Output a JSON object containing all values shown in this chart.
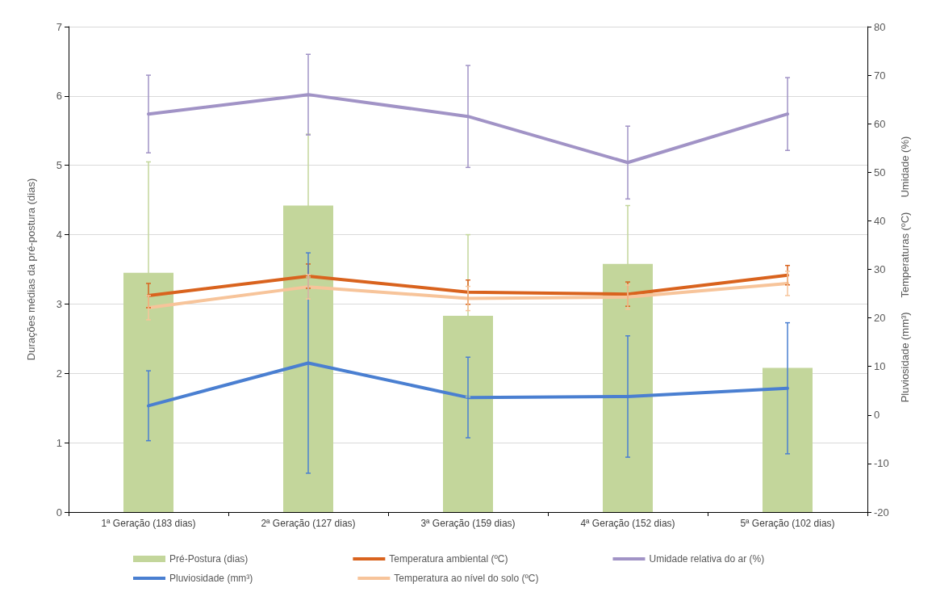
{
  "chart_data": {
    "type": "bar",
    "categories": [
      "1ª Geração (183 dias)",
      "2ª Geração (127 dias)",
      "3ª Geração (159 dias)",
      "4ª Geração (152 dias)",
      "5ª Geração (102 dias)"
    ],
    "ylabel": "Durações médias da pré-postura (dias)",
    "y2label": "Pluviosidade (mm³)     Temperaturas (ºC)     Umidade (%)",
    "ylim": [
      0,
      7
    ],
    "yticks": [
      0,
      1,
      2,
      3,
      4,
      5,
      6,
      7
    ],
    "y2lim": [
      -20,
      80
    ],
    "y2ticks": [
      -20,
      -10,
      0,
      10,
      20,
      30,
      40,
      50,
      60,
      70,
      80
    ],
    "grid": "y",
    "legend": "bottom",
    "marker": "none",
    "line_style": "solid",
    "series": [
      {
        "name": "Pré-Postura (dias)",
        "color": "#c3d69b",
        "values": [
          3.45,
          4.42,
          2.83,
          3.58,
          2.08
        ],
        "errors": [
          1.6,
          1.03,
          1.17,
          0.84,
          null
        ]
      },
      {
        "name": "Temperatura ambiental (ºC)",
        "type": "line",
        "axis": "y2",
        "color": "#d9631e",
        "values": [
          24.6,
          28.6,
          25.3,
          24.9,
          28.8
        ],
        "errors": [
          2.5,
          2.5,
          2.5,
          2.5,
          2
        ]
      },
      {
        "name": "Umidade relativa do ar (%)",
        "type": "line",
        "axis": "y2",
        "color": "#a193c6",
        "values": [
          62,
          66,
          61.5,
          52,
          62
        ],
        "errors": [
          8,
          8.3,
          10.5,
          7.5,
          7.5
        ]
      },
      {
        "name": "Pluviosidade (mm³)",
        "type": "line",
        "axis": "y2",
        "color": "#4a7fd1",
        "values": [
          1.9,
          10.7,
          3.6,
          3.8,
          5.5
        ],
        "errors": [
          7.2,
          22.7,
          8.3,
          12.5,
          13.5
        ]
      },
      {
        "name": "Temperatura ao nível do solo (ºC)",
        "type": "line",
        "axis": "y2",
        "color": "#f7c49a",
        "values": [
          22.1,
          26.4,
          24,
          24.3,
          27.1
        ],
        "errors": [
          2.5,
          2.5,
          2.5,
          2.5,
          2.5
        ]
      }
    ]
  }
}
